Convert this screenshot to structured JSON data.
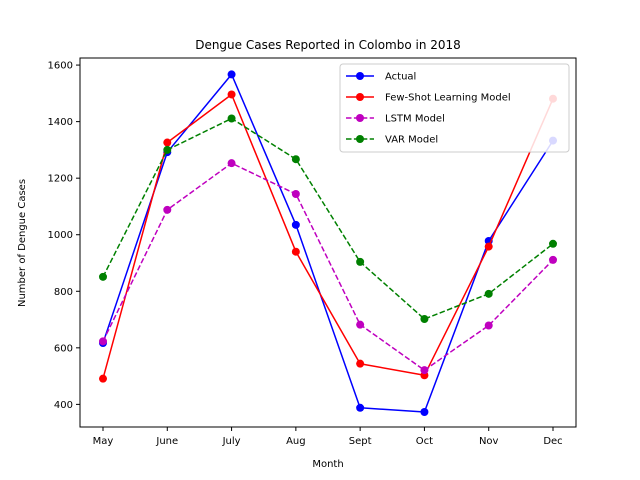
{
  "chart_data": {
    "type": "line",
    "title": "Dengue Cases Reported in Colombo in 2018",
    "xlabel": "Month",
    "ylabel": "Number of Dengue Cases",
    "categories": [
      "May",
      "June",
      "July",
      "Aug",
      "Sept",
      "Oct",
      "Nov",
      "Dec"
    ],
    "ylim": [
      320,
      1625
    ],
    "yticks": [
      400,
      600,
      800,
      1000,
      1200,
      1400,
      1600
    ],
    "grid": false,
    "legend_position": "top-right",
    "series": [
      {
        "name": "Actual",
        "color": "#0000ff",
        "dashed": false,
        "values": [
          617,
          1292,
          1567,
          1035,
          388,
          373,
          978,
          1333
        ]
      },
      {
        "name": "Few-Shot Learning Model",
        "color": "#ff0000",
        "dashed": false,
        "values": [
          491,
          1326,
          1496,
          940,
          544,
          503,
          958,
          1481
        ]
      },
      {
        "name": "LSTM Model",
        "color": "#bf00bf",
        "dashed": true,
        "values": [
          623,
          1088,
          1253,
          1144,
          682,
          521,
          679,
          911
        ]
      },
      {
        "name": "VAR Model",
        "color": "#008000",
        "dashed": true,
        "values": [
          851,
          1300,
          1411,
          1267,
          904,
          702,
          791,
          968
        ]
      }
    ]
  }
}
